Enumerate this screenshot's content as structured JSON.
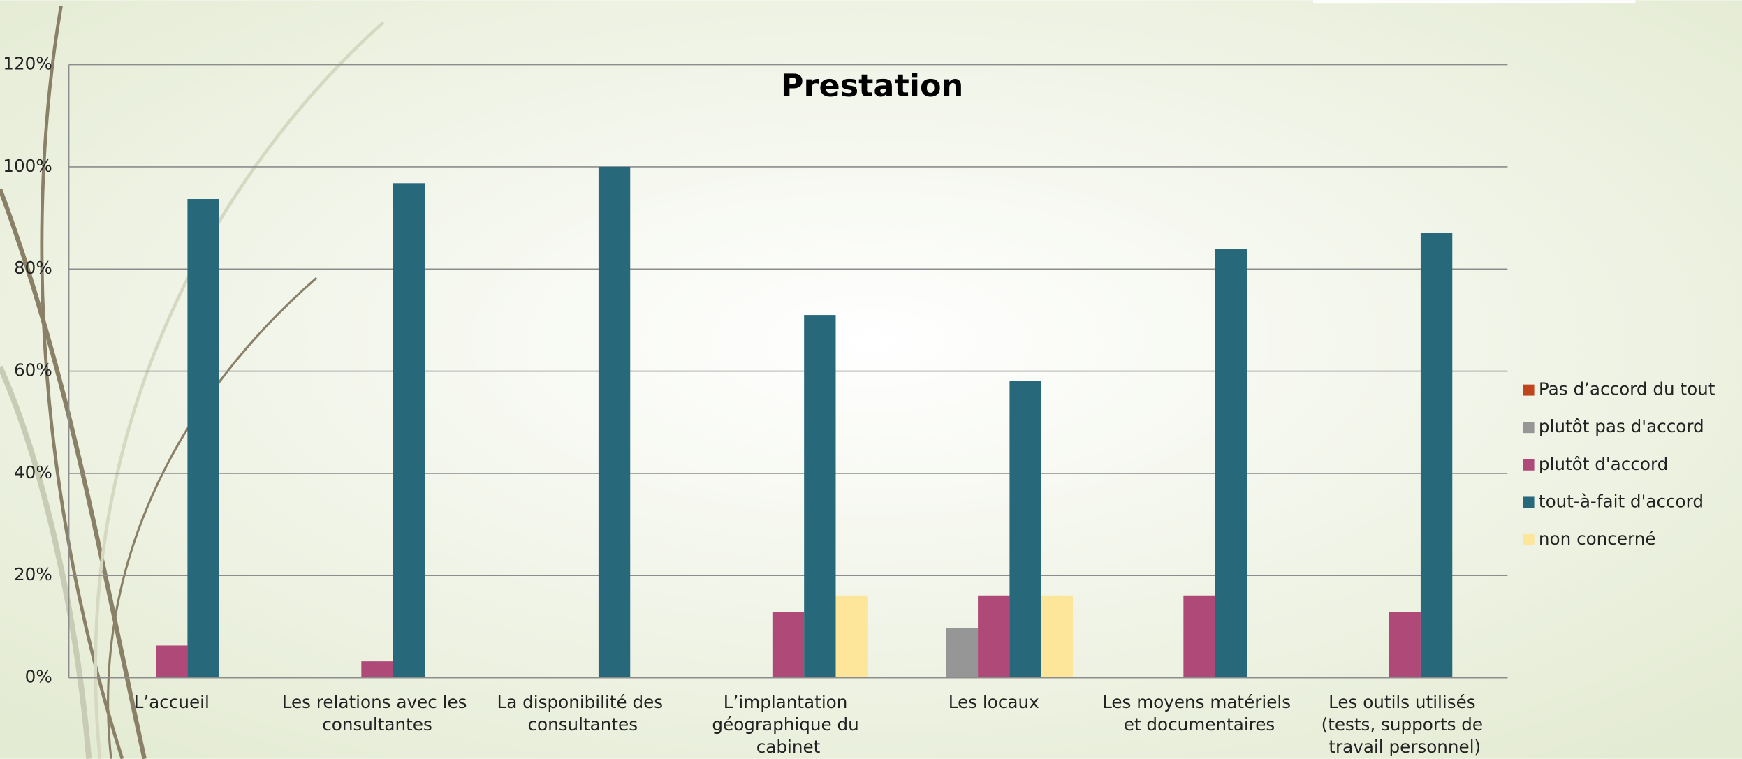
{
  "chart_data": {
    "type": "bar",
    "title": "Prestation",
    "categories": [
      "L’accueil",
      "Les relations avec les consultantes",
      "La disponibilité des consultantes",
      "L’implantation géographique du cabinet",
      "Les locaux",
      "Les moyens matériels et documentaires",
      "Les outils utilisés (tests, supports de travail personnel)"
    ],
    "series": [
      {
        "name": "Pas d’accord du tout",
        "color": "#c0441c",
        "values": [
          0,
          0,
          0,
          0,
          0,
          0,
          0
        ]
      },
      {
        "name": "plutôt pas d'accord",
        "color": "#969696",
        "values": [
          0,
          0,
          0,
          0,
          9.7,
          0,
          0
        ]
      },
      {
        "name": "plutôt d'accord",
        "color": "#ae4978",
        "values": [
          6.3,
          3.2,
          0,
          12.9,
          16.1,
          16.1,
          12.9
        ]
      },
      {
        "name": "tout-à-fait d'accord",
        "color": "#27697a",
        "values": [
          93.7,
          96.8,
          100,
          71,
          58.1,
          83.9,
          87.1
        ]
      },
      {
        "name": "non concerné",
        "color": "#fde59a",
        "values": [
          0,
          0,
          0,
          16.1,
          16.1,
          0,
          0
        ]
      }
    ],
    "ylim": [
      0,
      120
    ],
    "yticks": [
      {
        "value": 0,
        "label": "0%"
      },
      {
        "value": 20,
        "label": "20%"
      },
      {
        "value": 40,
        "label": "40%"
      },
      {
        "value": 60,
        "label": "60%"
      },
      {
        "value": 80,
        "label": "80%"
      },
      {
        "value": 100,
        "label": "100%"
      },
      {
        "value": 120,
        "label": "120%"
      }
    ],
    "grid": true,
    "legend": "right"
  }
}
